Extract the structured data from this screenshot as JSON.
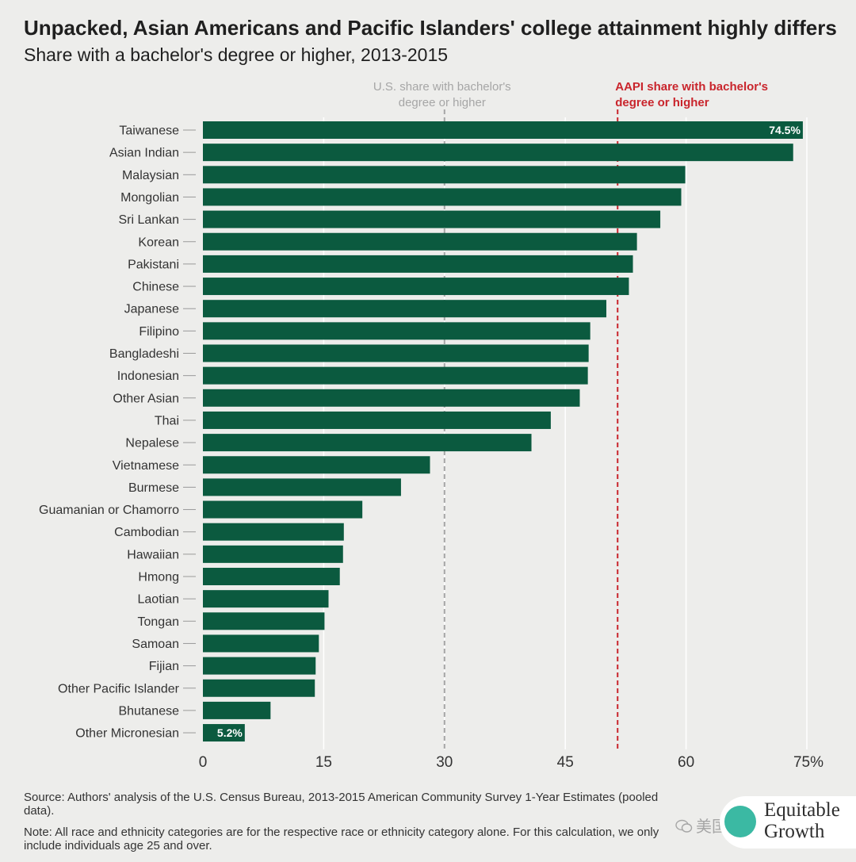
{
  "chart_data": {
    "type": "bar",
    "orientation": "horizontal",
    "title": "Unpacked, Asian Americans and Pacific Islanders' college attainment highly differs",
    "subtitle": "Share with a bachelor's degree or higher, 2013-2015",
    "categories": [
      "Taiwanese",
      "Asian Indian",
      "Malaysian",
      "Mongolian",
      "Sri Lankan",
      "Korean",
      "Pakistani",
      "Chinese",
      "Japanese",
      "Filipino",
      "Bangladeshi",
      "Indonesian",
      "Other Asian",
      "Thai",
      "Nepalese",
      "Vietnamese",
      "Burmese",
      "Guamanian or Chamorro",
      "Cambodian",
      "Hawaiian",
      "Hmong",
      "Laotian",
      "Tongan",
      "Samoan",
      "Fijian",
      "Other Pacific Islander",
      "Bhutanese",
      "Other Micronesian"
    ],
    "values": [
      74.5,
      73.3,
      59.9,
      59.4,
      56.8,
      53.9,
      53.4,
      52.9,
      50.1,
      48.1,
      47.9,
      47.8,
      46.8,
      43.2,
      40.8,
      28.2,
      24.6,
      19.8,
      17.5,
      17.4,
      17.0,
      15.6,
      15.1,
      14.4,
      14.0,
      13.9,
      8.4,
      5.2
    ],
    "data_labels": [
      {
        "category": "Taiwanese",
        "text": "74.5%"
      },
      {
        "category": "Other Micronesian",
        "text": "5.2%"
      }
    ],
    "xlim": [
      0,
      75
    ],
    "xticks": [
      {
        "value": 0,
        "label": "0"
      },
      {
        "value": 15,
        "label": "15"
      },
      {
        "value": 30,
        "label": "30"
      },
      {
        "value": 45,
        "label": "45"
      },
      {
        "value": 60,
        "label": "60"
      },
      {
        "value": 75,
        "label": "75%"
      }
    ],
    "grid": true,
    "reference_lines": [
      {
        "name": "us-share",
        "value": 30,
        "label_lines": [
          "U.S. share with bachelor's",
          "degree or higher"
        ],
        "color": "#a6a6a6"
      },
      {
        "name": "aapi-share",
        "value": 51.5,
        "label_lines": [
          "AAPI share with bachelor's",
          "degree or higher"
        ],
        "color": "#c9252c"
      }
    ],
    "bar_color": "#0b5a3f",
    "source": "Source: Authors' analysis of the U.S. Census Bureau, 2013-2015 American Community Survey 1-Year Estimates (pooled data).",
    "note": "Note: All race and ethnicity categories are for the respective race or ethnicity category alone. For this calculation, we only include individuals age 25 and over."
  },
  "logo": {
    "line1": "Equitable",
    "line2": "Growth",
    "color": "#3bb9a3"
  },
  "watermark": {
    "text": "美国华人杂谈"
  }
}
